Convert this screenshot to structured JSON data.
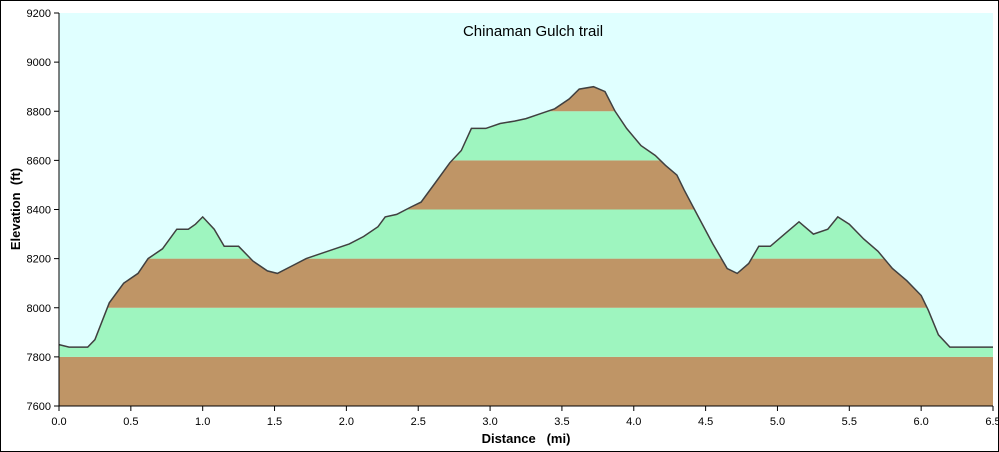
{
  "chart_data": {
    "type": "area",
    "title": "Chinaman Gulch trail",
    "xlabel": "Distance   (mi)",
    "ylabel": "Elevation  (ft)",
    "xlim": [
      0,
      6.5
    ],
    "ylim": [
      7600,
      9200
    ],
    "x_ticks": [
      "0.0",
      "0.5",
      "1.0",
      "1.5",
      "2.0",
      "2.5",
      "3.0",
      "3.5",
      "4.0",
      "4.5",
      "5.0",
      "5.5",
      "6.0",
      "6.5"
    ],
    "y_ticks": [
      "7600",
      "7800",
      "8000",
      "8200",
      "8400",
      "8600",
      "8800",
      "9000",
      "9200"
    ],
    "grid": false,
    "band_height": 200,
    "colors": {
      "background": "#e0ffff",
      "band_light": "#9ef5bf",
      "band_dark": "#bf9566",
      "profile_line": "#404040",
      "axis": "#000000"
    },
    "series": [
      {
        "x": [
          0.0,
          0.07,
          0.2,
          0.25,
          0.35,
          0.45,
          0.55,
          0.62,
          0.72,
          0.82,
          0.9,
          0.95,
          1.0,
          1.08,
          1.15,
          1.25,
          1.35,
          1.45,
          1.52,
          1.62,
          1.72,
          1.82,
          1.92,
          2.02,
          2.12,
          2.22,
          2.27,
          2.35,
          2.45,
          2.52,
          2.62,
          2.72,
          2.8,
          2.87,
          2.97,
          3.07,
          3.17,
          3.25,
          3.35,
          3.45,
          3.55,
          3.62,
          3.72,
          3.8,
          3.87,
          3.95,
          4.05,
          4.15,
          4.22,
          4.3,
          4.35,
          4.45,
          4.55,
          4.65,
          4.72,
          4.8,
          4.87,
          4.95,
          5.05,
          5.15,
          5.25,
          5.35,
          5.42,
          5.5,
          5.6,
          5.7,
          5.8,
          5.9,
          6.0,
          6.05,
          6.12,
          6.2,
          6.3,
          6.4,
          6.45,
          6.5
        ],
        "y": [
          7850,
          7840,
          7840,
          7870,
          8020,
          8100,
          8140,
          8200,
          8240,
          8320,
          8320,
          8340,
          8370,
          8320,
          8250,
          8250,
          8190,
          8150,
          8140,
          8170,
          8200,
          8220,
          8240,
          8260,
          8290,
          8330,
          8370,
          8380,
          8410,
          8430,
          8510,
          8590,
          8640,
          8730,
          8730,
          8750,
          8760,
          8770,
          8790,
          8810,
          8850,
          8890,
          8900,
          8880,
          8800,
          8730,
          8660,
          8620,
          8580,
          8540,
          8480,
          8370,
          8260,
          8160,
          8140,
          8180,
          8250,
          8250,
          8300,
          8350,
          8300,
          8320,
          8370,
          8340,
          8280,
          8230,
          8160,
          8110,
          8050,
          7990,
          7890,
          7840,
          7840,
          7840,
          7840,
          7840
        ]
      }
    ]
  }
}
